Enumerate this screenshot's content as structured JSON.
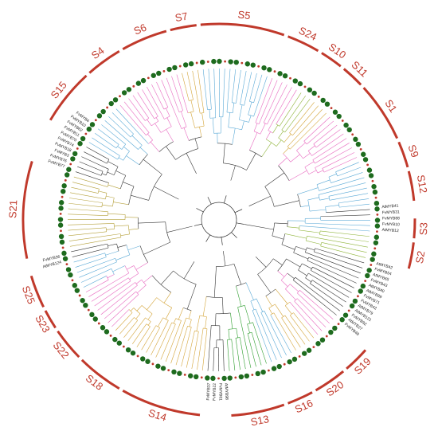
{
  "colors": {
    "arc": "#c0392b",
    "group_label": "#c0392b",
    "branch_default": "#333333",
    "dot_green": "#1e6b1e",
    "dot_red": "#c0392b",
    "label_black": "#222222"
  },
  "groups": [
    {
      "name": "S5",
      "start": -6,
      "end": 20,
      "color": "#5aa9d6"
    },
    {
      "name": "S24",
      "start": 20,
      "end": 31,
      "color": "#e86ac0"
    },
    {
      "name": "S10",
      "start": 31,
      "end": 39,
      "color": "#8fb43a"
    },
    {
      "name": "S11",
      "start": 39,
      "end": 47,
      "color": "#d4a53a"
    },
    {
      "name": "S1",
      "start": 47,
      "end": 66,
      "color": "#e86ac0"
    },
    {
      "name": "S9",
      "start": 66,
      "end": 75,
      "color": "#5aa9d6"
    },
    {
      "name": "S12",
      "start": 75,
      "end": 85,
      "color": "#5aa9d6"
    },
    {
      "name": "S3",
      "start": 89,
      "end": 96,
      "color": "#5aa9d6"
    },
    {
      "name": "S2",
      "start": 96,
      "end": 105,
      "color": "#8fb43a"
    },
    {
      "name": "S19",
      "start": 131,
      "end": 140,
      "color": "#e86ac0"
    },
    {
      "name": "S20",
      "start": 140,
      "end": 151,
      "color": "#d4a53a"
    },
    {
      "name": "S16",
      "start": 151,
      "end": 160,
      "color": "#5aa9d6"
    },
    {
      "name": "S13",
      "start": 160,
      "end": 177,
      "color": "#2e9e2e"
    },
    {
      "name": "S14",
      "start": 185,
      "end": 210,
      "color": "#d4a53a"
    },
    {
      "name": "S18",
      "start": 210,
      "end": 225,
      "color": "#d4a53a"
    },
    {
      "name": "S22",
      "start": 225,
      "end": 236,
      "color": "#e86ac0"
    },
    {
      "name": "S23",
      "start": 236,
      "end": 243,
      "color": "#e86ac0"
    },
    {
      "name": "S25",
      "start": 243,
      "end": 254,
      "color": "#5aa9d6"
    },
    {
      "name": "S21",
      "start": 258,
      "end": 288,
      "color": "#b5a03a"
    },
    {
      "name": "S15",
      "start": 300,
      "end": 318,
      "color": "#5aa9d6"
    },
    {
      "name": "S4",
      "start": 318,
      "end": 330,
      "color": "#e86ac0"
    },
    {
      "name": "S6",
      "start": 330,
      "end": 345,
      "color": "#e86ac0"
    },
    {
      "name": "S7",
      "start": 345,
      "end": 354,
      "color": "#d4a53a"
    }
  ],
  "leaves": [
    {
      "label": "FvMYB77",
      "angle": 289
    },
    {
      "label": "FvMYB76",
      "angle": 291
    },
    {
      "label": "FvMYB3",
      "angle": 293
    },
    {
      "label": "FvMYB18",
      "angle": 295
    },
    {
      "label": "FvMYB74",
      "angle": 297
    },
    {
      "label": "FvMYB70",
      "angle": 299
    },
    {
      "label": "FvMYB11",
      "angle": 301
    },
    {
      "label": "FvMYB62",
      "angle": 303
    },
    {
      "label": "FvMYB10",
      "angle": 305
    },
    {
      "label": "FvMYB4",
      "angle": 307
    },
    {
      "label": "AtMYB41",
      "angle": 85.5
    },
    {
      "label": "FvMYB31",
      "angle": 87.5
    },
    {
      "label": "FvMYB88",
      "angle": 89.5
    },
    {
      "label": "FvMYB10",
      "angle": 91.5
    },
    {
      "label": "AtMYB12",
      "angle": 93.5
    },
    {
      "label": "AtMYB42",
      "angle": 105.5
    },
    {
      "label": "FvMYB54",
      "angle": 107.5
    },
    {
      "label": "AtMYB65",
      "angle": 109.5
    },
    {
      "label": "FvMYB43",
      "angle": 111.5
    },
    {
      "label": "AtMYB40",
      "angle": 113.5
    },
    {
      "label": "AtMYB99",
      "angle": 115.5
    },
    {
      "label": "FvMYB71",
      "angle": 117.5
    },
    {
      "label": "FvMYB42",
      "angle": 119.5
    },
    {
      "label": "AtMYB79",
      "angle": 121.5
    },
    {
      "label": "AtMYB121",
      "angle": 123.5
    },
    {
      "label": "FvMYB92",
      "angle": 125.5
    },
    {
      "label": "AtMYB27",
      "angle": 127.5
    },
    {
      "label": "FvMYB48",
      "angle": 129.5
    },
    {
      "label": "AtMYB98",
      "angle": 177.5
    },
    {
      "label": "FvMYB61",
      "angle": 179.5
    },
    {
      "label": "FvMYB22",
      "angle": 181.5
    },
    {
      "label": "FvMYB37",
      "angle": 183.5
    },
    {
      "label": "AtMYB124",
      "angle": 255
    },
    {
      "label": "FvMYB36",
      "angle": 257
    }
  ]
}
